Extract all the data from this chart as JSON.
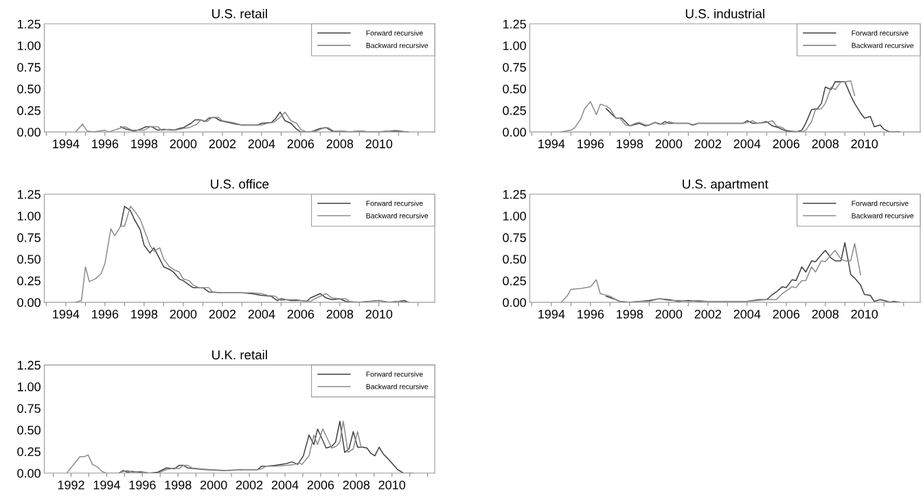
{
  "chart_data": [
    {
      "type": "line",
      "title": "U.S. retail",
      "xlim": [
        1992.9,
        2012.85
      ],
      "ylim": [
        0,
        1.25
      ],
      "yticks": [
        {
          "value": 0,
          "label": "0.00"
        },
        {
          "value": 0.25,
          "label": "0.25"
        },
        {
          "value": 0.5,
          "label": "0.50"
        },
        {
          "value": 0.75,
          "label": "0.75"
        },
        {
          "value": 1,
          "label": "1.00"
        },
        {
          "value": 1.25,
          "label": "1.25"
        }
      ],
      "xticks": [
        {
          "value": 1993,
          "label": null
        },
        1994,
        {
          "value": 1995,
          "label": null
        },
        1996,
        {
          "value": 1997,
          "label": null
        },
        1998,
        {
          "value": 1999,
          "label": null
        },
        2000,
        {
          "value": 2001,
          "label": null
        },
        2002,
        {
          "value": 2003,
          "label": null
        },
        2004,
        {
          "value": 2005,
          "label": null
        },
        2006,
        {
          "value": 2007,
          "label": null
        },
        2008,
        {
          "value": 2009,
          "label": null
        },
        2010,
        {
          "value": 2011,
          "label": null
        },
        {
          "value": 2012,
          "label": null
        }
      ],
      "legend": "top right",
      "grid": false,
      "series": [
        {
          "name": "Forward recursive",
          "color": "#404040",
          "x": [
            1996.8,
            1997.1,
            1997.5,
            1997.8,
            1998.1,
            1998.4,
            1998.7,
            1999.0,
            1999.5,
            1999.8,
            2000.0,
            2000.4,
            2000.6,
            2000.9,
            2001.1,
            2001.3,
            2001.6,
            2001.9,
            2002.3,
            2002.7,
            2003.0,
            2003.5,
            2003.8,
            2004.0,
            2004.5,
            2004.7,
            2004.95,
            2005.2,
            2005.5,
            2005.8,
            2006.0,
            2006.5,
            2007.0,
            2007.3,
            2007.6,
            2008.0,
            2008.5,
            2009.0,
            2009.5,
            2010.0,
            2010.5,
            2010.8,
            2011.0,
            2011.5
          ],
          "values": [
            0.06,
            0.03,
            0.01,
            0.03,
            0.06,
            0.06,
            0.02,
            0.03,
            0.02,
            0.04,
            0.05,
            0.1,
            0.14,
            0.14,
            0.12,
            0.16,
            0.17,
            0.13,
            0.11,
            0.09,
            0.08,
            0.08,
            0.08,
            0.1,
            0.11,
            0.15,
            0.23,
            0.13,
            0.1,
            0.03,
            0,
            0,
            0.04,
            0.05,
            0.01,
            0.01,
            0,
            0.01,
            0,
            0,
            0.01,
            0.015,
            0.01,
            0
          ]
        },
        {
          "name": "Backward recursive",
          "color": "#8c8c8c",
          "x": [
            1994.5,
            1994.85,
            1995.1,
            1995.4,
            1996.0,
            1996.2,
            1996.6,
            1997.0,
            1997.4,
            1997.8,
            1998.0,
            1998.3,
            1998.7,
            1998.9,
            1999.3,
            1999.6,
            2000.0,
            2000.3,
            2000.7,
            2000.9,
            2001.2,
            2001.5,
            2001.8,
            2002.0,
            2002.5,
            2003.0,
            2003.5,
            2004.0,
            2004.3,
            2004.6,
            2004.9,
            2005.2,
            2005.5,
            2005.8,
            2006.0,
            2006.3,
            2006.8,
            2007.1,
            2007.4,
            2007.7,
            2008.0,
            2008.5,
            2009.0,
            2009.5,
            2010.0,
            2010.5,
            2011.0,
            2011.5
          ],
          "values": [
            0,
            0.09,
            0.01,
            0,
            0.02,
            0,
            0.03,
            0.06,
            0.02,
            0.02,
            0.02,
            0.06,
            0.06,
            0.02,
            0.03,
            0.02,
            0.04,
            0.05,
            0.09,
            0.14,
            0.12,
            0.17,
            0.17,
            0.13,
            0.11,
            0.08,
            0.08,
            0.08,
            0.1,
            0.11,
            0.16,
            0.23,
            0.13,
            0.1,
            0.03,
            0,
            0.01,
            0.04,
            0.05,
            0.01,
            0.01,
            0,
            0.01,
            0,
            0,
            0.01,
            0,
            0
          ]
        }
      ]
    },
    {
      "type": "line",
      "title": "U.S. industrial",
      "xlim": [
        1992.9,
        2012.85
      ],
      "ylim": [
        0,
        1.25
      ],
      "yticks": [
        {
          "value": 0,
          "label": "0.00"
        },
        {
          "value": 0.25,
          "label": "0.25"
        },
        {
          "value": 0.5,
          "label": "0.50"
        },
        {
          "value": 0.75,
          "label": "0.75"
        },
        {
          "value": 1,
          "label": "1.00"
        },
        {
          "value": 1.25,
          "label": "1.25"
        }
      ],
      "xticks": [
        {
          "value": 1993,
          "label": null
        },
        1994,
        {
          "value": 1995,
          "label": null
        },
        1996,
        {
          "value": 1997,
          "label": null
        },
        1998,
        {
          "value": 1999,
          "label": null
        },
        2000,
        {
          "value": 2001,
          "label": null
        },
        2002,
        {
          "value": 2003,
          "label": null
        },
        2004,
        {
          "value": 2005,
          "label": null
        },
        2006,
        {
          "value": 2007,
          "label": null
        },
        2008,
        {
          "value": 2009,
          "label": null
        },
        2010,
        {
          "value": 2011,
          "label": null
        },
        {
          "value": 2012,
          "label": null
        }
      ],
      "legend": "top right",
      "grid": false,
      "series": [
        {
          "name": "Forward recursive",
          "color": "#404040",
          "x": [
            1996.8,
            1997.3,
            1997.6,
            1998.0,
            1998.5,
            1998.8,
            1999.0,
            1999.3,
            1999.6,
            1999.8,
            2000.0,
            2000.5,
            2001.0,
            2001.2,
            2001.5,
            2002.0,
            2003.0,
            2003.8,
            2004.0,
            2004.3,
            2004.6,
            2005.0,
            2005.3,
            2005.6,
            2006.0,
            2006.5,
            2006.8,
            2007.0,
            2007.3,
            2007.6,
            2007.8,
            2008.0,
            2008.3,
            2008.5,
            2008.8,
            2009.0,
            2009.3,
            2009.5,
            2009.8,
            2010.0,
            2010.3,
            2010.5,
            2010.8,
            2011.0,
            2011.3,
            2011.8
          ],
          "values": [
            0.27,
            0.16,
            0.16,
            0.07,
            0.1,
            0.07,
            0.08,
            0.11,
            0.09,
            0.12,
            0.1,
            0.1,
            0.1,
            0.08,
            0.1,
            0.1,
            0.1,
            0.1,
            0.13,
            0.1,
            0.1,
            0.12,
            0.07,
            0.05,
            0.01,
            0,
            0.02,
            0.1,
            0.26,
            0.27,
            0.33,
            0.52,
            0.49,
            0.58,
            0.58,
            0.58,
            0.42,
            0.33,
            0.22,
            0.16,
            0.18,
            0.06,
            0.08,
            0.03,
            0,
            0
          ]
        },
        {
          "name": "Backward recursive",
          "color": "#8c8c8c",
          "x": [
            1994.5,
            1995.0,
            1995.2,
            1995.5,
            1995.7,
            1996.0,
            1996.3,
            1996.5,
            1996.8,
            1997.0,
            1997.3,
            1997.5,
            1997.8,
            1998.0,
            1998.3,
            1998.5,
            1998.8,
            1999.0,
            1999.3,
            1999.5,
            1999.8,
            2000.0,
            2000.3,
            2000.5,
            2000.8,
            2001.0,
            2001.3,
            2001.5,
            2002.0,
            2003.0,
            2003.8,
            2004.0,
            2004.3,
            2004.5,
            2005.0,
            2005.3,
            2005.5,
            2005.8,
            2006.0,
            2006.3,
            2006.8,
            2007.0,
            2007.3,
            2007.5,
            2007.8,
            2008.0,
            2008.3,
            2008.5,
            2008.8,
            2009.0,
            2009.3,
            2009.5
          ],
          "values": [
            0,
            0.02,
            0.05,
            0.15,
            0.27,
            0.35,
            0.2,
            0.32,
            0.3,
            0.27,
            0.16,
            0.16,
            0.08,
            0.07,
            0.1,
            0.11,
            0.08,
            0.08,
            0.11,
            0.09,
            0.09,
            0.12,
            0.1,
            0.1,
            0.1,
            0.1,
            0.08,
            0.1,
            0.1,
            0.1,
            0.1,
            0.11,
            0.13,
            0.1,
            0.11,
            0.13,
            0.07,
            0.05,
            0.02,
            0.01,
            0,
            0.02,
            0.12,
            0.26,
            0.27,
            0.33,
            0.52,
            0.49,
            0.58,
            0.58,
            0.59,
            0.42
          ]
        }
      ]
    },
    {
      "type": "line",
      "title": "U.S. office",
      "xlim": [
        1992.9,
        2012.85
      ],
      "ylim": [
        0,
        1.25
      ],
      "yticks": [
        {
          "value": 0,
          "label": "0.00"
        },
        {
          "value": 0.25,
          "label": "0.25"
        },
        {
          "value": 0.5,
          "label": "0.50"
        },
        {
          "value": 0.75,
          "label": "0.75"
        },
        {
          "value": 1,
          "label": "1.00"
        },
        {
          "value": 1.25,
          "label": "1.25"
        }
      ],
      "xticks": [
        {
          "value": 1993,
          "label": null
        },
        1994,
        {
          "value": 1995,
          "label": null
        },
        1996,
        {
          "value": 1997,
          "label": null
        },
        1998,
        {
          "value": 1999,
          "label": null
        },
        2000,
        {
          "value": 2001,
          "label": null
        },
        2002,
        {
          "value": 2003,
          "label": null
        },
        2004,
        {
          "value": 2005,
          "label": null
        },
        2006,
        {
          "value": 2007,
          "label": null
        },
        2008,
        {
          "value": 2009,
          "label": null
        },
        2010,
        {
          "value": 2011,
          "label": null
        },
        {
          "value": 2012,
          "label": null
        }
      ],
      "legend": "top right",
      "grid": false,
      "series": [
        {
          "name": "Forward recursive",
          "color": "#404040",
          "x": [
            1996.8,
            1997.0,
            1997.3,
            1997.5,
            1997.8,
            1998.0,
            1998.3,
            1998.5,
            1998.8,
            1999.0,
            1999.3,
            1999.5,
            1999.8,
            2000.0,
            2000.3,
            2000.5,
            2001.0,
            2001.3,
            2002.0,
            2003.0,
            2003.5,
            2004.0,
            2004.5,
            2004.8,
            2005.0,
            2005.5,
            2006.0,
            2006.3,
            2006.5,
            2006.8,
            2007.0,
            2007.3,
            2007.6,
            2008.0,
            2008.3,
            2008.5,
            2009.0,
            2009.5,
            2010.0,
            2010.5,
            2011.0,
            2011.3,
            2011.5
          ],
          "values": [
            0.88,
            1.11,
            1.06,
            0.96,
            0.84,
            0.66,
            0.57,
            0.63,
            0.5,
            0.41,
            0.38,
            0.35,
            0.27,
            0.25,
            0.2,
            0.17,
            0.17,
            0.12,
            0.11,
            0.11,
            0.1,
            0.08,
            0.07,
            0.02,
            0.04,
            0.02,
            0.02,
            0.01,
            0.05,
            0.08,
            0.1,
            0.05,
            0.03,
            0.04,
            0.01,
            0,
            0,
            0.01,
            0.02,
            0,
            0.01,
            0.02,
            0
          ]
        },
        {
          "name": "Backward recursive",
          "color": "#8c8c8c",
          "x": [
            1994.5,
            1994.8,
            1995.0,
            1995.2,
            1995.5,
            1995.8,
            1996.0,
            1996.3,
            1996.5,
            1996.8,
            1997.0,
            1997.3,
            1997.5,
            1997.8,
            1998.0,
            1998.3,
            1998.5,
            1998.8,
            1999.0,
            1999.3,
            1999.5,
            1999.8,
            2000.0,
            2000.3,
            2000.5,
            2000.8,
            2001.0,
            2001.3,
            2001.5,
            2002.0,
            2003.0,
            2003.5,
            2004.0,
            2004.3,
            2004.7,
            2005.0,
            2005.3,
            2005.8,
            2006.0,
            2006.5,
            2006.8,
            2007.0,
            2007.3,
            2007.6,
            2008.0,
            2008.3,
            2008.5,
            2009.0,
            2009.5,
            2010.0,
            2010.5,
            2011.0,
            2011.5
          ],
          "values": [
            0,
            0.02,
            0.41,
            0.24,
            0.27,
            0.33,
            0.45,
            0.85,
            0.77,
            0.88,
            0.88,
            1.11,
            1.06,
            0.96,
            0.84,
            0.66,
            0.59,
            0.63,
            0.5,
            0.41,
            0.38,
            0.35,
            0.27,
            0.25,
            0.2,
            0.17,
            0.17,
            0.17,
            0.12,
            0.11,
            0.11,
            0.11,
            0.1,
            0.08,
            0.07,
            0.02,
            0.03,
            0.03,
            0.02,
            0.01,
            0.05,
            0.07,
            0.1,
            0.05,
            0.04,
            0.04,
            0.01,
            0,
            0.01,
            0.02,
            0,
            0.01,
            0
          ]
        }
      ]
    },
    {
      "type": "line",
      "title": "U.S. apartment",
      "xlim": [
        1992.9,
        2012.85
      ],
      "ylim": [
        0,
        1.25
      ],
      "yticks": [
        {
          "value": 0,
          "label": "0.00"
        },
        {
          "value": 0.25,
          "label": "0.25"
        },
        {
          "value": 0.5,
          "label": "0.50"
        },
        {
          "value": 0.75,
          "label": "0.75"
        },
        {
          "value": 1,
          "label": "1.00"
        },
        {
          "value": 1.25,
          "label": "1.25"
        }
      ],
      "xticks": [
        {
          "value": 1993,
          "label": null
        },
        1994,
        {
          "value": 1995,
          "label": null
        },
        1996,
        {
          "value": 1997,
          "label": null
        },
        1998,
        {
          "value": 1999,
          "label": null
        },
        2000,
        {
          "value": 2001,
          "label": null
        },
        2002,
        {
          "value": 2003,
          "label": null
        },
        2004,
        {
          "value": 2005,
          "label": null
        },
        2006,
        {
          "value": 2007,
          "label": null
        },
        2008,
        {
          "value": 2009,
          "label": null
        },
        2010,
        {
          "value": 2011,
          "label": null
        },
        {
          "value": 2012,
          "label": null
        }
      ],
      "legend": "top right",
      "grid": false,
      "series": [
        {
          "name": "Forward recursive",
          "color": "#404040",
          "x": [
            1996.8,
            1997.3,
            1997.5,
            1998.0,
            1998.5,
            1999.0,
            1999.5,
            2000.0,
            2000.5,
            2001.0,
            2001.5,
            2002.0,
            2003.0,
            2004.0,
            2004.3,
            2004.6,
            2005.0,
            2005.3,
            2005.5,
            2005.8,
            2006.0,
            2006.3,
            2006.5,
            2006.8,
            2007.0,
            2007.3,
            2007.5,
            2007.8,
            2008.0,
            2008.3,
            2008.5,
            2008.8,
            2009.0,
            2009.3,
            2009.5,
            2009.8,
            2010.0,
            2010.3,
            2010.5,
            2010.8,
            2011.0,
            2011.3,
            2011.5,
            2011.8
          ],
          "values": [
            0.07,
            0.03,
            0.01,
            0,
            0.01,
            0.02,
            0.04,
            0.03,
            0.01,
            0.02,
            0.01,
            0.01,
            0.01,
            0.01,
            0.02,
            0.03,
            0.03,
            0.09,
            0.12,
            0.18,
            0.17,
            0.26,
            0.25,
            0.41,
            0.35,
            0.48,
            0.47,
            0.55,
            0.6,
            0.51,
            0.48,
            0.48,
            0.69,
            0.32,
            0.28,
            0.2,
            0.09,
            0.08,
            0.01,
            0.03,
            0.02,
            0,
            0.01,
            0
          ]
        },
        {
          "name": "Backward recursive",
          "color": "#8c8c8c",
          "x": [
            1994.5,
            1994.8,
            1995.0,
            1995.5,
            1996.0,
            1996.3,
            1996.5,
            1997.0,
            1997.3,
            1997.5,
            1998.0,
            1998.5,
            1998.8,
            1999.0,
            1999.5,
            2000.0,
            2000.5,
            2001.0,
            2001.5,
            2002.0,
            2003.0,
            2004.0,
            2004.5,
            2005.0,
            2005.5,
            2005.8,
            2006.0,
            2006.3,
            2006.5,
            2006.8,
            2007.0,
            2007.3,
            2007.5,
            2007.8,
            2008.0,
            2008.3,
            2008.5,
            2008.8,
            2009.0,
            2009.3,
            2009.5,
            2009.8
          ],
          "values": [
            0,
            0.07,
            0.15,
            0.16,
            0.18,
            0.26,
            0.1,
            0.07,
            0.03,
            0.01,
            0,
            0.01,
            0.01,
            0.01,
            0.04,
            0.02,
            0.02,
            0.01,
            0.02,
            0.01,
            0.01,
            0.01,
            0.02,
            0.03,
            0.03,
            0.1,
            0.13,
            0.18,
            0.17,
            0.25,
            0.25,
            0.41,
            0.35,
            0.48,
            0.47,
            0.55,
            0.6,
            0.5,
            0.48,
            0.48,
            0.68,
            0.32
          ]
        }
      ]
    },
    {
      "type": "line",
      "title": "U.K. retail",
      "xlim": [
        1990.5,
        2012.4
      ],
      "ylim": [
        0,
        1.25
      ],
      "yticks": [
        {
          "value": 0,
          "label": "0.00"
        },
        {
          "value": 0.25,
          "label": "0.25"
        },
        {
          "value": 0.5,
          "label": "0.50"
        },
        {
          "value": 0.75,
          "label": "0.75"
        },
        {
          "value": 1,
          "label": "1.00"
        },
        {
          "value": 1.25,
          "label": "1.25"
        }
      ],
      "xticks": [
        {
          "value": 1991,
          "label": null
        },
        1992,
        {
          "value": 1993,
          "label": null
        },
        1994,
        {
          "value": 1995,
          "label": null
        },
        1996,
        {
          "value": 1997,
          "label": null
        },
        1998,
        {
          "value": 1999,
          "label": null
        },
        2000,
        {
          "value": 2001,
          "label": null
        },
        2002,
        {
          "value": 2003,
          "label": null
        },
        2004,
        {
          "value": 2005,
          "label": null
        },
        2006,
        {
          "value": 2007,
          "label": null
        },
        2008,
        {
          "value": 2009,
          "label": null
        },
        2010,
        {
          "value": 2011,
          "label": null
        },
        {
          "value": 2012,
          "label": null
        }
      ],
      "legend": "top right",
      "grid": false,
      "series": [
        {
          "name": "Forward recursive",
          "color": "#404040",
          "x": [
            1994.69,
            1994.93,
            1995.17,
            1995.41,
            1995.89,
            1996.38,
            1996.86,
            1997.34,
            1997.82,
            1998.06,
            1998.3,
            1998.54,
            1999.02,
            1999.58,
            2000.54,
            2001.66,
            2002.46,
            2002.7,
            2002.94,
            2003.43,
            2004.07,
            2004.39,
            2004.71,
            2005.03,
            2005.35,
            2005.62,
            2005.83,
            2006.31,
            2006.63,
            2006.84,
            2007.08,
            2007.35,
            2007.59,
            2007.83,
            2008.07,
            2008.36,
            2008.6,
            2008.81,
            2009.04,
            2009.28,
            2009.52,
            2009.76,
            2010.32,
            2010.64,
            2011.2
          ],
          "values": [
            0,
            0.03,
            0.01,
            0.02,
            0.01,
            0,
            0.01,
            0.06,
            0.05,
            0.09,
            0.09,
            0.06,
            0.05,
            0.04,
            0.03,
            0.04,
            0.04,
            0.08,
            0.08,
            0.09,
            0.11,
            0.13,
            0.1,
            0.2,
            0.44,
            0.33,
            0.51,
            0.29,
            0.31,
            0.36,
            0.6,
            0.24,
            0.28,
            0.48,
            0.3,
            0.3,
            0.29,
            0.23,
            0.2,
            0.3,
            0.22,
            0.17,
            0.04,
            0,
            0
          ]
        },
        {
          "name": "Backward recursive",
          "color": "#8c8c8c",
          "x": [
            1991.76,
            1992.5,
            1992.74,
            1992.96,
            1993.2,
            1993.49,
            1993.73,
            1993.97,
            1994.69,
            1994.93,
            1995.17,
            1995.41,
            1995.89,
            1996.38,
            1996.86,
            1997.34,
            1997.82,
            1998.06,
            1998.3,
            1998.54,
            1998.78,
            1999.26,
            1999.82,
            2000.86,
            2001.66,
            2002.46,
            2002.7,
            2002.94,
            2003.43,
            2004.07,
            2004.55,
            2004.79,
            2004.95,
            2005.35,
            2005.62,
            2005.83,
            2006.12,
            2006.63,
            2006.87,
            2007.08,
            2007.27,
            2007.54,
            2007.83,
            2008.07,
            2008.27
          ],
          "values": [
            0,
            0.19,
            0.19,
            0.21,
            0.1,
            0.07,
            0.02,
            0,
            0,
            0.02,
            0.03,
            0.01,
            0.02,
            0,
            0,
            0.04,
            0.06,
            0.05,
            0.09,
            0.09,
            0.06,
            0.05,
            0.04,
            0.03,
            0.04,
            0.04,
            0.05,
            0.08,
            0.08,
            0.09,
            0.1,
            0.12,
            0.1,
            0.2,
            0.44,
            0.33,
            0.51,
            0.29,
            0.31,
            0.36,
            0.6,
            0.24,
            0.28,
            0.48,
            0.3
          ]
        }
      ]
    }
  ]
}
